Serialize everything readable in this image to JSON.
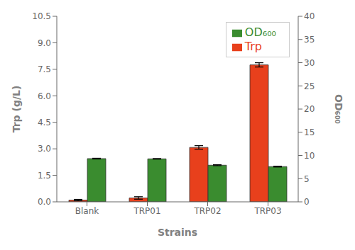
{
  "chart_data": {
    "type": "bar",
    "xlabel": "Strains",
    "ylabel": "Trp (g/L)",
    "y2label": "OD₆₀₀",
    "categories": [
      "Blank",
      "TRP01",
      "TRP02",
      "TRP03"
    ],
    "series": [
      {
        "name": "Trp",
        "color": "#E8401C",
        "values": [
          0.1,
          0.22,
          3.08,
          7.75
        ],
        "errors": [
          0.04,
          0.07,
          0.1,
          0.12
        ]
      },
      {
        "name": "OD₆₀₀",
        "color": "#3A8C2F",
        "axis": "y2",
        "values": [
          9.32,
          9.27,
          7.9,
          7.6
        ],
        "errors": [
          0.08,
          0.06,
          0.1,
          0.09
        ]
      }
    ],
    "ylim": [
      0,
      10.5
    ],
    "yticks": [
      {
        "value": 0,
        "label": "0.0"
      },
      1.5,
      {
        "value": 3,
        "label": "3.0"
      },
      4.5,
      {
        "value": 6,
        "label": "6.0"
      },
      7.5,
      {
        "value": 9,
        "label": "9.0"
      },
      10.5
    ],
    "y2lim": [
      0,
      40
    ],
    "y2ticks": [
      0,
      5,
      10,
      15,
      20,
      25,
      30,
      35,
      40
    ],
    "legend": "upper right",
    "grid": false
  }
}
